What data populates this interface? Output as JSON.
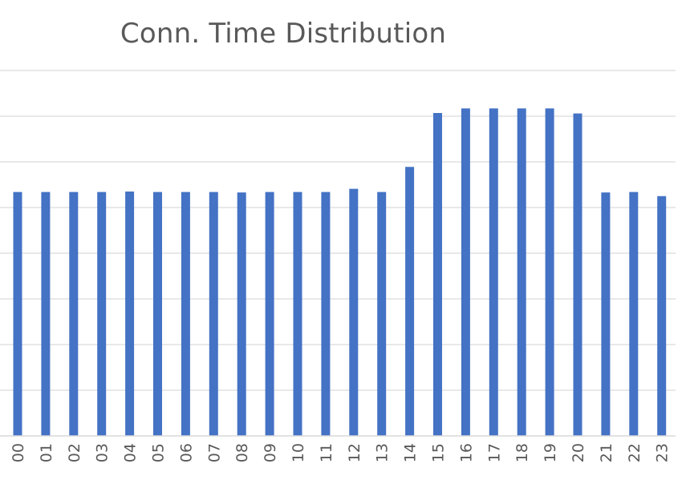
{
  "chart_data": {
    "type": "bar",
    "title": "Conn. Time Distribution",
    "categories": [
      "00",
      "01",
      "02",
      "03",
      "04",
      "05",
      "06",
      "07",
      "08",
      "09",
      "10",
      "11",
      "12",
      "13",
      "14",
      "15",
      "16",
      "17",
      "18",
      "19",
      "20",
      "21",
      "22",
      "23"
    ],
    "values": [
      5.34,
      5.34,
      5.34,
      5.34,
      5.35,
      5.34,
      5.34,
      5.34,
      5.33,
      5.34,
      5.34,
      5.34,
      5.41,
      5.34,
      5.89,
      7.07,
      7.17,
      7.17,
      7.17,
      7.17,
      7.06,
      5.33,
      5.34,
      5.25
    ],
    "ylim": [
      0,
      8
    ],
    "grid": true,
    "color": "#4472c4"
  }
}
